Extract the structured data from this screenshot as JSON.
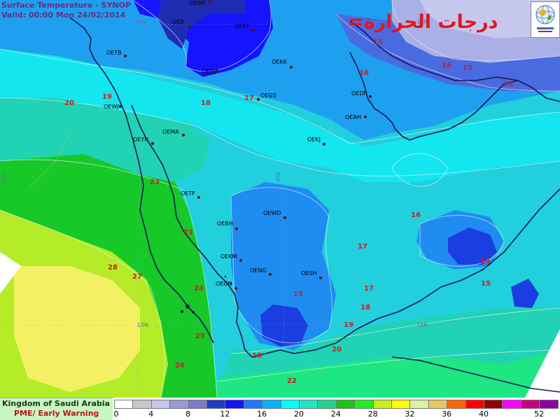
{
  "header": {
    "title": "Surface Temperature  - SYNOP",
    "valid": "Valid: 00:00 Mon 24/02/2014",
    "arabic_title": "=درجات الحرارة"
  },
  "organization": {
    "name": "Kingdom of Saudi Arabia",
    "unit": "PME/ Early Warning"
  },
  "legend": {
    "colors": [
      "#ffffff",
      "#c8c8c8",
      "#c6c6ee",
      "#9a9ad8",
      "#7a7ad0",
      "#1e3cc8",
      "#1414ff",
      "#1e78ff",
      "#00b4ff",
      "#00ffff",
      "#1ee6c8",
      "#23d290",
      "#14c814",
      "#1ef01e",
      "#c8f014",
      "#ffff00",
      "#dcf0a0",
      "#e6c860",
      "#ff6400",
      "#ff0000",
      "#960000",
      "#ff00ff",
      "#c80080",
      "#8c00a0"
    ],
    "tick_labels": [
      "0",
      "4",
      "8",
      "12",
      "16",
      "20",
      "24",
      "28",
      "32",
      "36",
      "40",
      "52"
    ]
  },
  "grid_labels": [
    "30N",
    "30N",
    "15N",
    "15N",
    "45E",
    "30E"
  ],
  "stations": [
    {
      "code": "OERR"
    },
    {
      "code": "OEJF"
    },
    {
      "code": "OERF"
    },
    {
      "code": "OETB"
    },
    {
      "code": "OEKK"
    },
    {
      "code": "OEHL"
    },
    {
      "code": "OEGS"
    },
    {
      "code": "OEDF"
    },
    {
      "code": "OEWJ"
    },
    {
      "code": "OEAH"
    },
    {
      "code": "OEMA"
    },
    {
      "code": "OEYN"
    },
    {
      "code": "OEKJ"
    },
    {
      "code": "OETF"
    },
    {
      "code": "OEWD"
    },
    {
      "code": "OEBH"
    },
    {
      "code": "OEKM"
    },
    {
      "code": "OENG"
    },
    {
      "code": "OESH"
    },
    {
      "code": "OEGN"
    }
  ],
  "temperatures": [
    {
      "value": "15"
    },
    {
      "value": "16"
    },
    {
      "value": "14"
    },
    {
      "value": "15"
    },
    {
      "value": "18"
    },
    {
      "value": "19"
    },
    {
      "value": "20"
    },
    {
      "value": "18"
    },
    {
      "value": "17"
    },
    {
      "value": "23"
    },
    {
      "value": "16"
    },
    {
      "value": "21"
    },
    {
      "value": "17"
    },
    {
      "value": "14"
    },
    {
      "value": "28"
    },
    {
      "value": "27"
    },
    {
      "value": "24"
    },
    {
      "value": "17"
    },
    {
      "value": "15"
    },
    {
      "value": "15"
    },
    {
      "value": "18"
    },
    {
      "value": "19"
    },
    {
      "value": "25"
    },
    {
      "value": "20"
    },
    {
      "value": "26"
    },
    {
      "value": "16"
    },
    {
      "value": "22"
    }
  ]
}
